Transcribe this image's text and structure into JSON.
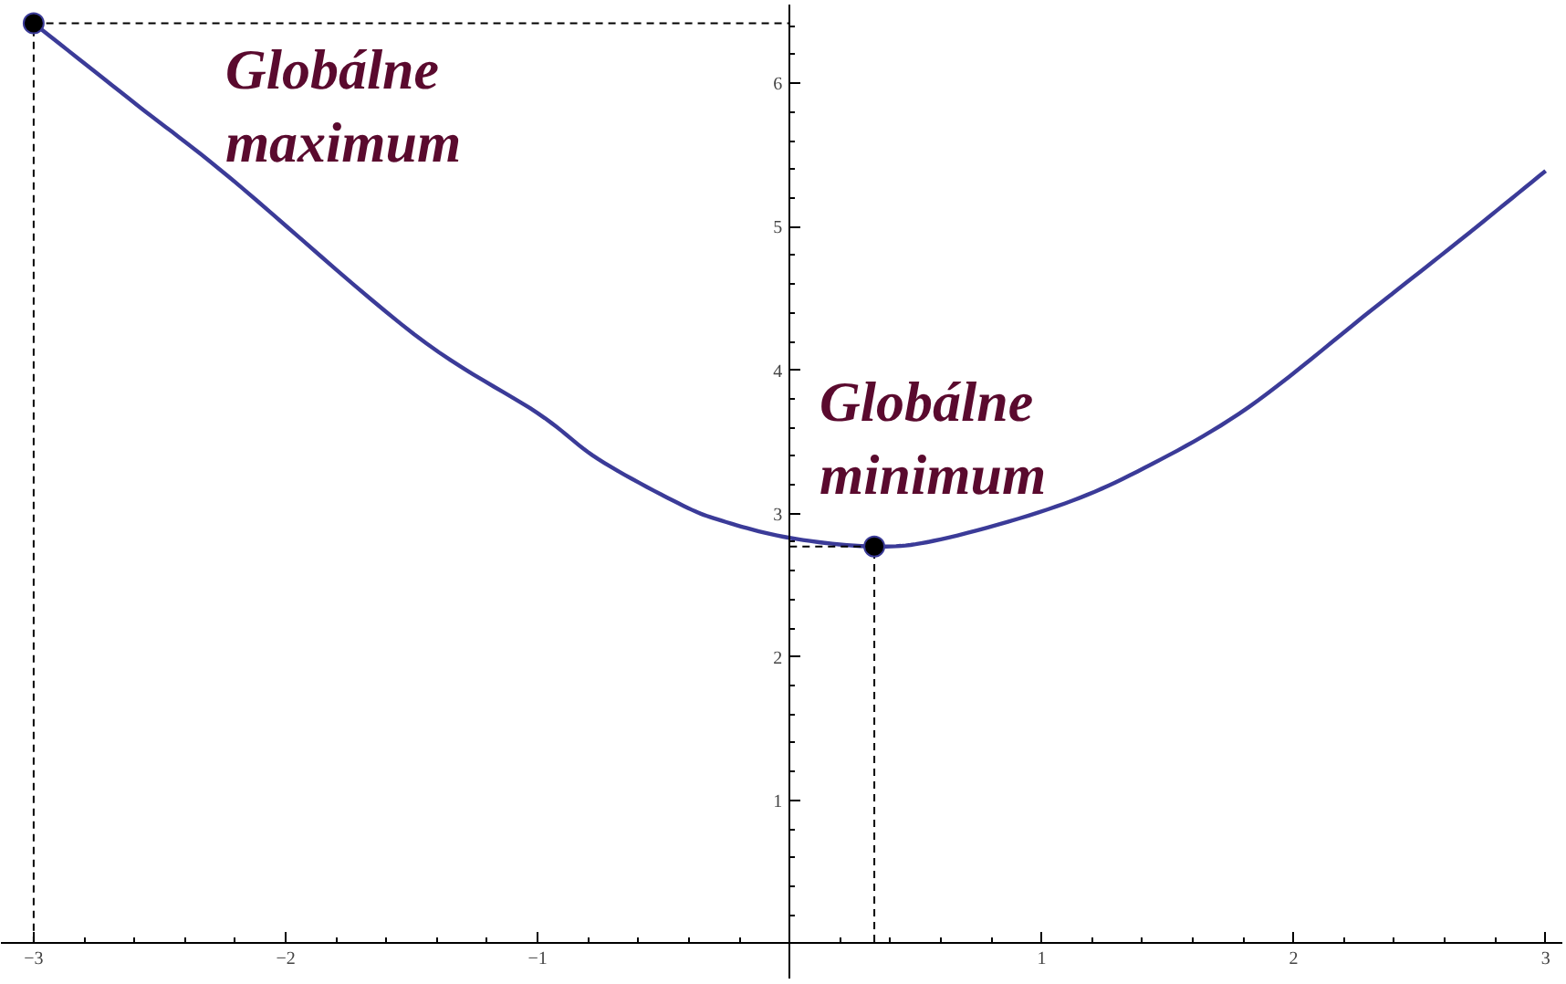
{
  "chart_data": {
    "type": "line",
    "x": [
      -3,
      -2.59,
      -2.22,
      -1.49,
      -1.0,
      -0.76,
      -0.44,
      -0.27,
      0,
      0.336,
      0.6,
      1.06,
      1.41,
      1.82,
      2.31,
      2.67,
      3
    ],
    "series": [
      {
        "color": "#3b3b98",
        "values": [
          6.42,
          5.85,
          5.34,
          4.25,
          3.7,
          3.38,
          3.07,
          2.95,
          2.83,
          2.77,
          2.82,
          3.05,
          3.32,
          3.74,
          4.42,
          4.92,
          5.39
        ]
      },
      {
        "type": "scatter",
        "color": "#000000",
        "x": [
          -3,
          0.336
        ],
        "values": [
          6.42,
          2.77
        ]
      },
      {
        "color": "#000000",
        "line_style": "dashed",
        "x": [
          -3,
          -3,
          0
        ],
        "values": [
          0,
          6.42,
          6.42
        ]
      },
      {
        "color": "#000000",
        "line_style": "dashed",
        "x": [
          0,
          0.336,
          0.336
        ],
        "values": [
          2.77,
          2.77,
          0
        ]
      }
    ],
    "annotations": [
      "Globálne maximum",
      "Globálne minimum"
    ],
    "xlim": [
      -3.13,
      3.07
    ],
    "ylim": [
      -0.25,
      6.55
    ],
    "xticks": [
      {
        "value": -3,
        "label": "−3"
      },
      {
        "value": -2,
        "label": "−2"
      },
      {
        "value": -1,
        "label": "−1"
      },
      1,
      2,
      3,
      {
        "value": -2.8,
        "label": null
      },
      {
        "value": -2.6,
        "label": null
      },
      {
        "value": -2.4,
        "label": null
      },
      {
        "value": -2.2,
        "label": null
      },
      {
        "value": -1.8,
        "label": null
      },
      {
        "value": -1.6,
        "label": null
      },
      {
        "value": -1.4,
        "label": null
      },
      {
        "value": -1.2,
        "label": null
      },
      {
        "value": -0.8,
        "label": null
      },
      {
        "value": -0.6,
        "label": null
      },
      {
        "value": -0.4,
        "label": null
      },
      {
        "value": -0.2,
        "label": null
      },
      {
        "value": 0.2,
        "label": null
      },
      {
        "value": 0.4,
        "label": null
      },
      {
        "value": 0.6,
        "label": null
      },
      {
        "value": 0.8,
        "label": null
      },
      {
        "value": 1.2,
        "label": null
      },
      {
        "value": 1.4,
        "label": null
      },
      {
        "value": 1.6,
        "label": null
      },
      {
        "value": 1.8,
        "label": null
      },
      {
        "value": 2.2,
        "label": null
      },
      {
        "value": 2.4,
        "label": null
      },
      {
        "value": 2.6,
        "label": null
      },
      {
        "value": 2.8,
        "label": null
      }
    ],
    "yticks": [
      1,
      2,
      3,
      4,
      5,
      6,
      {
        "value": 0.2,
        "label": null
      },
      {
        "value": 0.4,
        "label": null
      },
      {
        "value": 0.6,
        "label": null
      },
      {
        "value": 0.8,
        "label": null
      },
      {
        "value": 1.2,
        "label": null
      },
      {
        "value": 1.4,
        "label": null
      },
      {
        "value": 1.6,
        "label": null
      },
      {
        "value": 1.8,
        "label": null
      },
      {
        "value": 2.2,
        "label": null
      },
      {
        "value": 2.4,
        "label": null
      },
      {
        "value": 2.6,
        "label": null
      },
      {
        "value": 2.8,
        "label": null
      },
      {
        "value": 3.2,
        "label": null
      },
      {
        "value": 3.4,
        "label": null
      },
      {
        "value": 3.6,
        "label": null
      },
      {
        "value": 3.8,
        "label": null
      },
      {
        "value": 4.2,
        "label": null
      },
      {
        "value": 4.4,
        "label": null
      },
      {
        "value": 4.6,
        "label": null
      },
      {
        "value": 4.8,
        "label": null
      },
      {
        "value": 5.2,
        "label": null
      },
      {
        "value": 5.4,
        "label": null
      },
      {
        "value": 5.6,
        "label": null
      },
      {
        "value": 5.8,
        "label": null
      },
      {
        "value": 6.2,
        "label": null
      },
      {
        "value": 6.4,
        "label": null
      }
    ]
  }
}
